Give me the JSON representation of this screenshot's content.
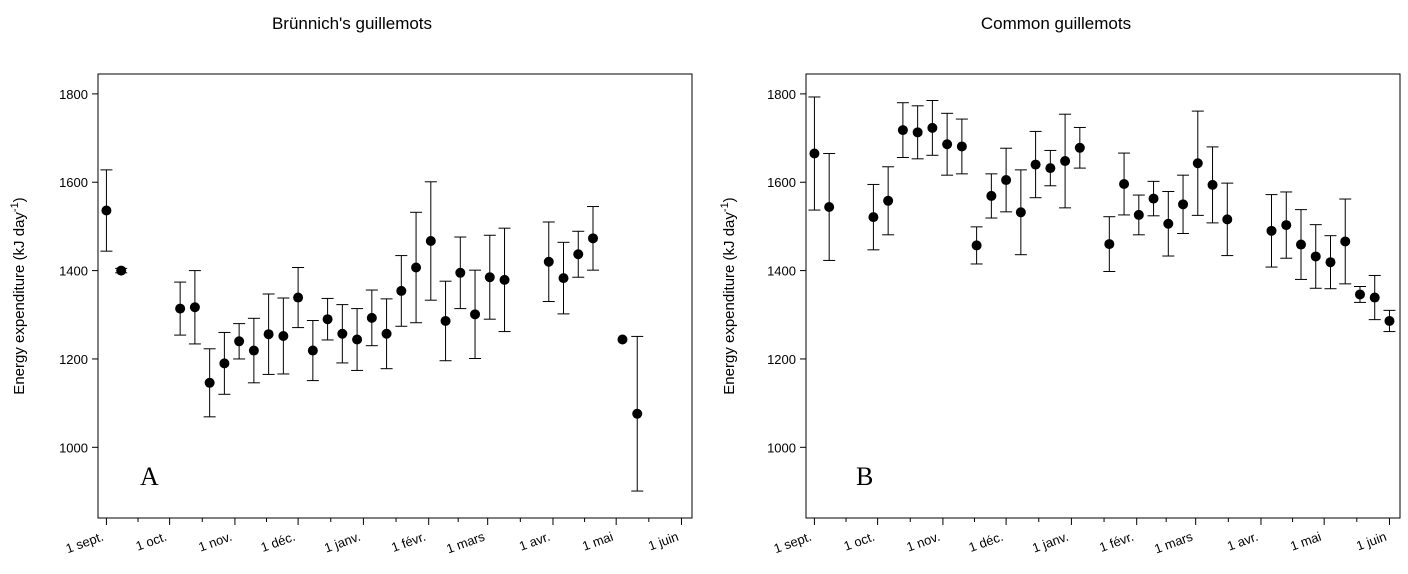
{
  "chart_data": [
    {
      "type": "scatter",
      "title": "Brünnich's guillemots",
      "panel_label": "A",
      "ylabel_main": "Energy expenditure (kJ day",
      "ylabel_sup": "-1",
      "ylabel_end": ")",
      "ylim": [
        840,
        1845
      ],
      "y_ticks": [
        1000,
        1200,
        1400,
        1600,
        1800
      ],
      "x_ticks": [
        "1 sept.",
        "1 oct.",
        "1 nov.",
        "1 déc.",
        "1 janv.",
        "1 févr.",
        "1 mars",
        "1 avr.",
        "1 mai",
        "1 juin"
      ],
      "xlim": [
        -4,
        278
      ],
      "grid": false,
      "points": [
        {
          "x": 0,
          "y": 1536,
          "err": 92
        },
        {
          "x": 7,
          "y": 1400,
          "err": 5
        },
        {
          "x": 35,
          "y": 1314,
          "err": 60
        },
        {
          "x": 42,
          "y": 1317,
          "err": 83
        },
        {
          "x": 49,
          "y": 1146,
          "err": 77
        },
        {
          "x": 56,
          "y": 1190,
          "err": 70
        },
        {
          "x": 63,
          "y": 1240,
          "err": 40
        },
        {
          "x": 70,
          "y": 1219,
          "err": 73
        },
        {
          "x": 77,
          "y": 1256,
          "err": 91
        },
        {
          "x": 84,
          "y": 1252,
          "err": 86
        },
        {
          "x": 91,
          "y": 1339,
          "err": 68
        },
        {
          "x": 98,
          "y": 1219,
          "err": 68
        },
        {
          "x": 105,
          "y": 1290,
          "err": 47
        },
        {
          "x": 112,
          "y": 1257,
          "err": 66
        },
        {
          "x": 119,
          "y": 1244,
          "err": 70
        },
        {
          "x": 126,
          "y": 1293,
          "err": 63
        },
        {
          "x": 133,
          "y": 1257,
          "err": 79
        },
        {
          "x": 140,
          "y": 1354,
          "err": 80
        },
        {
          "x": 147,
          "y": 1407,
          "err": 125
        },
        {
          "x": 154,
          "y": 1467,
          "err": 134
        },
        {
          "x": 161,
          "y": 1286,
          "err": 90
        },
        {
          "x": 168,
          "y": 1395,
          "err": 81
        },
        {
          "x": 175,
          "y": 1301,
          "err": 100
        },
        {
          "x": 182,
          "y": 1385,
          "err": 95
        },
        {
          "x": 189,
          "y": 1379,
          "err": 117
        },
        {
          "x": 210,
          "y": 1420,
          "err": 90
        },
        {
          "x": 217,
          "y": 1383,
          "err": 81
        },
        {
          "x": 224,
          "y": 1437,
          "err": 52
        },
        {
          "x": 231,
          "y": 1473,
          "err": 72
        },
        {
          "x": 245,
          "y": 1244,
          "err": 0
        },
        {
          "x": 252,
          "y": 1076,
          "err": 175
        }
      ]
    },
    {
      "type": "scatter",
      "title": "Common guillemots",
      "panel_label": "B",
      "ylabel_main": "Energy expenditure (kJ day",
      "ylabel_sup": "-1",
      "ylabel_end": ")",
      "ylim": [
        840,
        1845
      ],
      "y_ticks": [
        1000,
        1200,
        1400,
        1600,
        1800
      ],
      "x_ticks": [
        "1 sept.",
        "1 oct.",
        "1 nov.",
        "1 déc.",
        "1 janv.",
        "1 févr.",
        "1 mars",
        "1 avr.",
        "1 mai",
        "1 juin"
      ],
      "xlim": [
        -4,
        278
      ],
      "grid": false,
      "points": [
        {
          "x": 0,
          "y": 1665,
          "err": 128
        },
        {
          "x": 7,
          "y": 1544,
          "err": 121
        },
        {
          "x": 28,
          "y": 1521,
          "err": 74
        },
        {
          "x": 35,
          "y": 1558,
          "err": 77
        },
        {
          "x": 42,
          "y": 1718,
          "err": 62
        },
        {
          "x": 49,
          "y": 1713,
          "err": 60
        },
        {
          "x": 56,
          "y": 1723,
          "err": 62
        },
        {
          "x": 63,
          "y": 1686,
          "err": 70
        },
        {
          "x": 70,
          "y": 1681,
          "err": 62
        },
        {
          "x": 77,
          "y": 1457,
          "err": 42
        },
        {
          "x": 84,
          "y": 1569,
          "err": 50
        },
        {
          "x": 91,
          "y": 1605,
          "err": 72
        },
        {
          "x": 98,
          "y": 1532,
          "err": 96
        },
        {
          "x": 105,
          "y": 1640,
          "err": 75
        },
        {
          "x": 112,
          "y": 1632,
          "err": 40
        },
        {
          "x": 119,
          "y": 1648,
          "err": 106
        },
        {
          "x": 126,
          "y": 1678,
          "err": 46
        },
        {
          "x": 140,
          "y": 1460,
          "err": 62
        },
        {
          "x": 147,
          "y": 1596,
          "err": 70
        },
        {
          "x": 154,
          "y": 1526,
          "err": 45
        },
        {
          "x": 161,
          "y": 1563,
          "err": 39
        },
        {
          "x": 168,
          "y": 1506,
          "err": 73
        },
        {
          "x": 175,
          "y": 1550,
          "err": 66
        },
        {
          "x": 182,
          "y": 1643,
          "err": 118
        },
        {
          "x": 189,
          "y": 1594,
          "err": 86
        },
        {
          "x": 196,
          "y": 1516,
          "err": 82
        },
        {
          "x": 217,
          "y": 1490,
          "err": 82
        },
        {
          "x": 224,
          "y": 1503,
          "err": 75
        },
        {
          "x": 231,
          "y": 1459,
          "err": 79
        },
        {
          "x": 238,
          "y": 1432,
          "err": 72
        },
        {
          "x": 245,
          "y": 1419,
          "err": 60
        },
        {
          "x": 252,
          "y": 1466,
          "err": 96
        },
        {
          "x": 259,
          "y": 1346,
          "err": 18
        },
        {
          "x": 266,
          "y": 1339,
          "err": 50
        },
        {
          "x": 273,
          "y": 1286,
          "err": 24
        }
      ]
    }
  ]
}
